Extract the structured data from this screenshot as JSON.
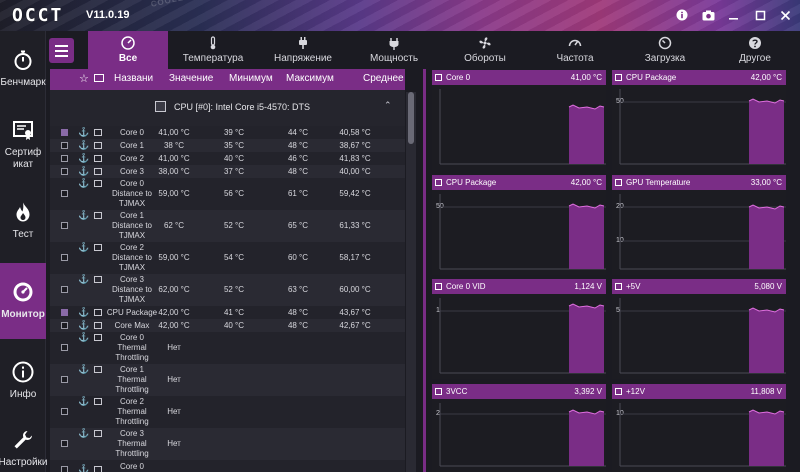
{
  "app": {
    "logo": "OCCT",
    "version": "V11.0.19",
    "watermark": "COOLER MASTER · COOLER MASTER · COOLER MASTER · COOLER MASTER · COOLER MASTER · COOLER MASTER"
  },
  "sidebar": {
    "items": [
      {
        "label": "Бенчмарк",
        "icon": "stopwatch-icon"
      },
      {
        "label": "Сертификат",
        "icon": "certificate-icon"
      },
      {
        "label": "Тест",
        "icon": "flame-icon"
      },
      {
        "label": "Монитор",
        "icon": "gauge-icon"
      },
      {
        "label": "Инфо",
        "icon": "info-icon"
      },
      {
        "label": "Настройки",
        "icon": "wrench-icon"
      }
    ]
  },
  "tabs": [
    {
      "label": "Все",
      "icon": "all-icon"
    },
    {
      "label": "Температура",
      "icon": "thermometer-icon"
    },
    {
      "label": "Напряжение",
      "icon": "plug-icon"
    },
    {
      "label": "Мощность",
      "icon": "power-plug-icon"
    },
    {
      "label": "Обороты",
      "icon": "fan-icon"
    },
    {
      "label": "Частота",
      "icon": "speedometer-icon"
    },
    {
      "label": "Загрузка",
      "icon": "load-gauge-icon"
    },
    {
      "label": "Другое",
      "icon": "question-icon"
    }
  ],
  "table": {
    "headers": {
      "name": "Названи",
      "value": "Значение",
      "min": "Минимум",
      "max": "Максимум",
      "avg": "Среднее"
    },
    "group_title": "CPU [#0]: Intel Core i5-4570: DTS",
    "rows": [
      {
        "name": "Core 0",
        "value": "41,00 °C",
        "min": "39 °C",
        "max": "44 °C",
        "avg": "40,58 °C",
        "checked": true
      },
      {
        "name": "Core 1",
        "value": "38 °C",
        "min": "35 °C",
        "max": "48 °C",
        "avg": "38,67 °C",
        "checked": false
      },
      {
        "name": "Core 2",
        "value": "41,00 °C",
        "min": "40 °C",
        "max": "46 °C",
        "avg": "41,83 °C",
        "checked": false
      },
      {
        "name": "Core 3",
        "value": "38,00 °C",
        "min": "37 °C",
        "max": "48 °C",
        "avg": "40,00 °C",
        "checked": false
      },
      {
        "name": "Core 0 Distance to TJMAX",
        "value": "59,00 °C",
        "min": "56 °C",
        "max": "61 °C",
        "avg": "59,42 °C",
        "checked": false
      },
      {
        "name": "Core 1 Distance to TJMAX",
        "value": "62 °C",
        "min": "52 °C",
        "max": "65 °C",
        "avg": "61,33 °C",
        "checked": false
      },
      {
        "name": "Core 2 Distance to TJMAX",
        "value": "59,00 °C",
        "min": "54 °C",
        "max": "60 °C",
        "avg": "58,17 °C",
        "checked": false
      },
      {
        "name": "Core 3 Distance to TJMAX",
        "value": "62,00 °C",
        "min": "52 °C",
        "max": "63 °C",
        "avg": "60,00 °C",
        "checked": false
      },
      {
        "name": "CPU Package",
        "value": "42,00 °C",
        "min": "41 °C",
        "max": "48 °C",
        "avg": "43,67 °C",
        "checked": true
      },
      {
        "name": "Core Max",
        "value": "42,00 °C",
        "min": "40 °C",
        "max": "48 °C",
        "avg": "42,67 °C",
        "checked": false
      },
      {
        "name": "Core 0 Thermal Throttling",
        "value": "Нет",
        "min": "",
        "max": "",
        "avg": "",
        "checked": false
      },
      {
        "name": "Core 1 Thermal Throttling",
        "value": "Нет",
        "min": "",
        "max": "",
        "avg": "",
        "checked": false
      },
      {
        "name": "Core 2 Thermal Throttling",
        "value": "Нет",
        "min": "",
        "max": "",
        "avg": "",
        "checked": false
      },
      {
        "name": "Core 3 Thermal Throttling",
        "value": "Нет",
        "min": "",
        "max": "",
        "avg": "",
        "checked": false
      },
      {
        "name": "Core 0",
        "value": "",
        "min": "",
        "max": "",
        "avg": "",
        "checked": false
      }
    ]
  },
  "graphs": [
    {
      "name": "Core 0",
      "value": "41,00 °C",
      "ticks": [],
      "level": 0.72,
      "colors": {
        "fill": "#7a2d86"
      }
    },
    {
      "name": "CPU Package",
      "value": "42,00 °C",
      "ticks": [
        "50"
      ],
      "level": 0.8,
      "colors": {
        "fill": "#7a2d86"
      }
    },
    {
      "name": "CPU Package",
      "value": "42,00 °C",
      "ticks": [
        "50"
      ],
      "level": 0.8,
      "colors": {
        "fill": "#7a2d86"
      }
    },
    {
      "name": "GPU Temperature",
      "value": "33,00 °C",
      "ticks": [
        "20",
        "10"
      ],
      "level": 0.78,
      "colors": {
        "fill": "#7a2d86"
      }
    },
    {
      "name": "Core 0 VID",
      "value": "1,124 V",
      "ticks": [
        "1"
      ],
      "level": 0.85,
      "colors": {
        "fill": "#7a2d86"
      }
    },
    {
      "name": "+5V",
      "value": "5,080 V",
      "ticks": [
        "5"
      ],
      "level": 0.8,
      "colors": {
        "fill": "#7a2d86"
      }
    },
    {
      "name": "3VCC",
      "value": "3,392 V",
      "ticks": [
        "2"
      ],
      "level": 0.8,
      "colors": {
        "fill": "#7a2d86"
      }
    },
    {
      "name": "+12V",
      "value": "11,808 V",
      "ticks": [
        "10"
      ],
      "level": 0.8,
      "colors": {
        "fill": "#7a2d86"
      }
    }
  ]
}
